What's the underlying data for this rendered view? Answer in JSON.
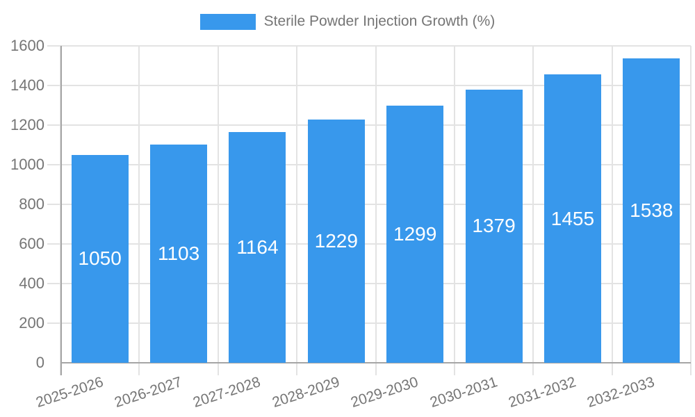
{
  "chart_data": {
    "type": "bar",
    "title": "Sterile Powder Injection Growth (%)",
    "categories": [
      "2025-2026",
      "2026-2027",
      "2027-2028",
      "2028-2029",
      "2029-2030",
      "2030-2031",
      "2031-2032",
      "2032-2033"
    ],
    "values": [
      1050,
      1103,
      1164,
      1229,
      1299,
      1379,
      1455,
      1538
    ],
    "xlabel": "",
    "ylabel": "",
    "ylim": [
      0,
      1600
    ],
    "yticks": [
      0,
      200,
      400,
      600,
      800,
      1000,
      1200,
      1400,
      1600
    ],
    "grid": true,
    "legend_position": "top",
    "legend_entries": [
      "Sterile Powder Injection Growth (%)"
    ],
    "bar_color": "#3898EC",
    "bar_label_color": "#ffffff",
    "text_color": "#757575",
    "grid_color": "#e3e3e3",
    "tick_color": "#d0d0d0",
    "axis_color": "#a5a5a5",
    "background_color": "#ffffff"
  }
}
